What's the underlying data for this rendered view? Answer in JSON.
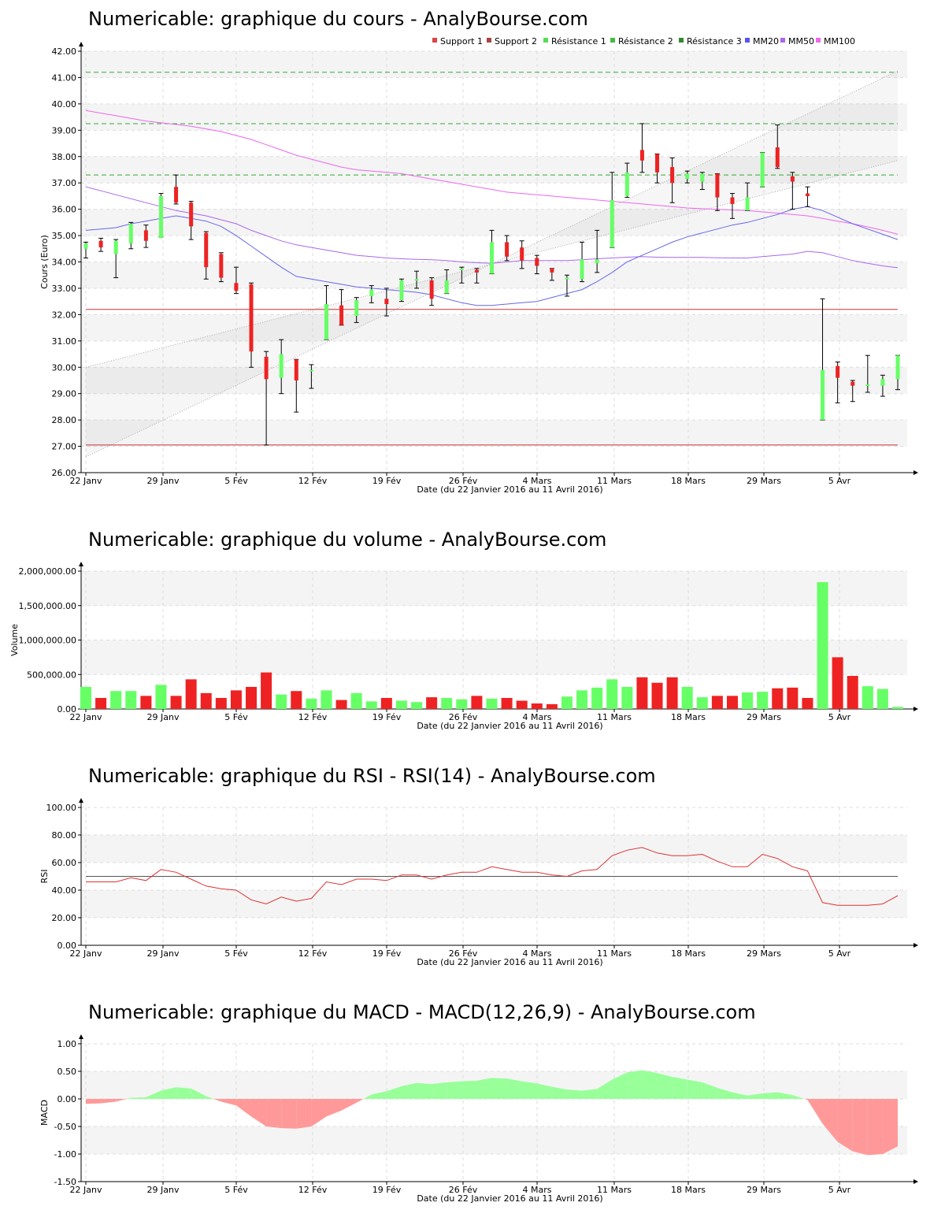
{
  "common": {
    "x_labels": [
      "22 Janv",
      "29 Janv",
      "5 Fév",
      "12 Fév",
      "19 Fév",
      "26 Fév",
      "4 Mars",
      "11 Mars",
      "18 Mars",
      "29 Mars",
      "5 Avr"
    ],
    "x_axis_label": "Date (du 22 Janvier 2016 au 11 Avril 2016)",
    "colors": {
      "up": "#66ff66",
      "down": "#ee2222",
      "mm20": "#6666ee",
      "mm50": "#aa66ee",
      "mm100": "#ee66ee",
      "support": "#cc3333",
      "resistance": "#33aa33",
      "band": "#f4f4f4",
      "grid": "#dddddd"
    }
  },
  "chart_data": [
    {
      "type": "candlestick",
      "title": "Numericable: graphique du cours - AnalyBourse.com",
      "ylabel": "Cours (Euro)",
      "ylim": [
        26,
        42
      ],
      "yticks": [
        "26.00",
        "27.00",
        "28.00",
        "29.00",
        "30.00",
        "31.00",
        "32.00",
        "33.00",
        "34.00",
        "35.00",
        "36.00",
        "37.00",
        "38.00",
        "39.00",
        "40.00",
        "41.00",
        "42.00"
      ],
      "legend": [
        "Support 1",
        "Support 2",
        "Résistance 1",
        "Résistance 2",
        "Résistance 3",
        "MM20",
        "MM50",
        "MM100"
      ],
      "legend_colors": [
        "#dd4444",
        "#aa4444",
        "#55dd55",
        "#44bb44",
        "#338833",
        "#5555ee",
        "#aa66ee",
        "#ee66ee"
      ],
      "support_levels": [
        32.2,
        27.05
      ],
      "resistance_levels": [
        37.3,
        39.25,
        41.2
      ],
      "ohlc": [
        [
          34.5,
          34.7,
          34.15,
          34.75
        ],
        [
          34.8,
          34.55,
          34.4,
          34.9
        ],
        [
          34.3,
          34.8,
          33.4,
          34.85
        ],
        [
          34.7,
          35.45,
          34.5,
          35.5
        ],
        [
          35.2,
          34.8,
          34.55,
          35.4
        ],
        [
          34.9,
          36.5,
          34.95,
          36.6
        ],
        [
          36.85,
          36.25,
          36.2,
          37.3
        ],
        [
          36.25,
          35.35,
          34.85,
          36.3
        ],
        [
          35.1,
          33.8,
          33.35,
          35.15
        ],
        [
          34.3,
          33.4,
          33.25,
          34.35
        ],
        [
          33.2,
          32.9,
          32.8,
          33.8
        ],
        [
          33.15,
          30.6,
          30.0,
          33.2
        ],
        [
          30.4,
          29.55,
          27.05,
          30.6
        ],
        [
          29.6,
          30.5,
          29.0,
          31.05
        ],
        [
          30.3,
          29.5,
          28.3,
          30.3
        ],
        [
          29.85,
          29.9,
          29.2,
          30.1
        ],
        [
          31.05,
          32.4,
          31.05,
          33.1
        ],
        [
          32.35,
          31.6,
          31.6,
          32.95
        ],
        [
          31.95,
          32.55,
          31.7,
          32.65
        ],
        [
          32.7,
          32.95,
          32.45,
          33.1
        ],
        [
          32.6,
          32.4,
          31.95,
          33.0
        ],
        [
          32.55,
          33.3,
          32.5,
          33.35
        ],
        [
          33.35,
          33.35,
          33.0,
          33.65
        ],
        [
          33.3,
          32.6,
          32.35,
          33.4
        ],
        [
          32.8,
          33.3,
          32.8,
          33.7
        ],
        [
          33.7,
          33.75,
          33.2,
          33.8
        ],
        [
          33.7,
          33.6,
          33.2,
          33.75
        ],
        [
          33.55,
          34.75,
          33.55,
          35.2
        ],
        [
          34.75,
          34.2,
          34.05,
          35.0
        ],
        [
          34.55,
          34.05,
          33.75,
          34.8
        ],
        [
          34.15,
          33.85,
          33.55,
          34.25
        ],
        [
          33.75,
          33.6,
          33.3,
          33.75
        ],
        [
          33.35,
          33.4,
          32.7,
          33.5
        ],
        [
          33.35,
          34.1,
          33.25,
          34.75
        ],
        [
          33.95,
          34.1,
          33.6,
          35.2
        ],
        [
          34.55,
          36.35,
          34.55,
          37.4
        ],
        [
          36.5,
          37.4,
          36.45,
          37.75
        ],
        [
          38.25,
          37.85,
          37.4,
          39.25
        ],
        [
          38.1,
          37.4,
          37.0,
          38.1
        ],
        [
          37.6,
          37.0,
          36.25,
          37.95
        ],
        [
          37.15,
          37.35,
          37.0,
          37.45
        ],
        [
          37.05,
          37.35,
          36.75,
          37.4
        ],
        [
          37.35,
          36.45,
          35.95,
          37.35
        ],
        [
          36.45,
          36.2,
          35.65,
          36.6
        ],
        [
          35.95,
          36.45,
          35.95,
          37.0
        ],
        [
          36.85,
          38.15,
          36.85,
          38.15
        ],
        [
          38.35,
          37.6,
          37.55,
          39.2
        ],
        [
          37.25,
          37.05,
          36.0,
          37.4
        ],
        [
          36.6,
          36.5,
          36.1,
          36.85
        ],
        [
          28.0,
          29.9,
          28.0,
          32.6
        ],
        [
          30.05,
          29.6,
          28.65,
          30.2
        ],
        [
          29.45,
          29.3,
          28.7,
          29.5
        ],
        [
          29.3,
          29.35,
          29.05,
          30.45
        ],
        [
          29.3,
          29.55,
          28.9,
          29.7
        ],
        [
          29.55,
          30.45,
          29.15,
          30.45
        ]
      ],
      "mm20": [
        35.2,
        35.25,
        35.3,
        35.45,
        35.55,
        35.65,
        35.75,
        35.65,
        35.55,
        35.35,
        35.0,
        34.6,
        34.2,
        33.8,
        33.45,
        33.35,
        33.25,
        33.15,
        33.05,
        33.0,
        32.95,
        32.9,
        32.85,
        32.75,
        32.6,
        32.45,
        32.35,
        32.35,
        32.4,
        32.45,
        32.5,
        32.65,
        32.8,
        32.95,
        33.25,
        33.6,
        34.0,
        34.25,
        34.5,
        34.75,
        34.95,
        35.1,
        35.25,
        35.4,
        35.5,
        35.65,
        35.8,
        36.0,
        36.1,
        35.95,
        35.7,
        35.45,
        35.25,
        35.05,
        34.85
      ],
      "mm50": [
        36.85,
        36.7,
        36.55,
        36.4,
        36.25,
        36.1,
        35.95,
        35.85,
        35.75,
        35.6,
        35.45,
        35.2,
        35.0,
        34.8,
        34.65,
        34.55,
        34.45,
        34.35,
        34.25,
        34.2,
        34.15,
        34.12,
        34.1,
        34.08,
        34.05,
        34.0,
        33.97,
        33.95,
        34.0,
        34.05,
        34.05,
        34.05,
        34.05,
        34.08,
        34.12,
        34.15,
        34.18,
        34.2,
        34.18,
        34.17,
        34.17,
        34.17,
        34.16,
        34.15,
        34.15,
        34.2,
        34.25,
        34.3,
        34.4,
        34.35,
        34.2,
        34.05,
        33.95,
        33.85,
        33.78
      ],
      "mm100": [
        39.75,
        39.65,
        39.55,
        39.45,
        39.35,
        39.28,
        39.22,
        39.15,
        39.05,
        38.95,
        38.8,
        38.65,
        38.45,
        38.25,
        38.05,
        37.9,
        37.75,
        37.6,
        37.5,
        37.45,
        37.4,
        37.35,
        37.25,
        37.15,
        37.05,
        36.95,
        36.85,
        36.75,
        36.65,
        36.6,
        36.55,
        36.5,
        36.45,
        36.4,
        36.35,
        36.3,
        36.25,
        36.2,
        36.15,
        36.1,
        36.05,
        36.02,
        36.0,
        35.97,
        35.95,
        35.9,
        35.85,
        35.8,
        35.75,
        35.65,
        35.55,
        35.45,
        35.33,
        35.2,
        35.05
      ]
    },
    {
      "type": "bar",
      "title": "Numericable: graphique du volume - AnalyBourse.com",
      "ylabel": "Volume",
      "ylim": [
        0,
        2000000
      ],
      "yticks": [
        "0.00",
        "500,000.00",
        "1,000,000.00",
        "1,500,000.00",
        "2,000,000.00"
      ],
      "values": [
        320000,
        160000,
        260000,
        260000,
        190000,
        350000,
        190000,
        430000,
        230000,
        160000,
        270000,
        320000,
        530000,
        210000,
        260000,
        150000,
        270000,
        130000,
        230000,
        110000,
        160000,
        120000,
        100000,
        170000,
        160000,
        140000,
        190000,
        150000,
        160000,
        120000,
        80000,
        70000,
        180000,
        270000,
        310000,
        430000,
        320000,
        460000,
        380000,
        460000,
        320000,
        170000,
        190000,
        190000,
        240000,
        250000,
        300000,
        310000,
        160000,
        1840000,
        750000,
        480000,
        330000,
        290000,
        30000
      ],
      "up": [
        1,
        0,
        1,
        1,
        0,
        1,
        0,
        0,
        0,
        0,
        0,
        0,
        0,
        1,
        0,
        1,
        1,
        0,
        1,
        1,
        0,
        1,
        1,
        0,
        1,
        1,
        0,
        1,
        0,
        0,
        0,
        0,
        1,
        1,
        1,
        1,
        1,
        0,
        0,
        0,
        1,
        1,
        0,
        0,
        1,
        1,
        0,
        0,
        0,
        1,
        0,
        0,
        1,
        1,
        1
      ]
    },
    {
      "type": "line",
      "title": "Numericable: graphique du RSI - RSI(14) - AnalyBourse.com",
      "ylabel": "RSI",
      "ylim": [
        0,
        100
      ],
      "yticks": [
        "0.00",
        "20.00",
        "40.00",
        "60.00",
        "80.00",
        "100.00"
      ],
      "reference_line": 50,
      "values": [
        46,
        46,
        46,
        49,
        47,
        55,
        53,
        48,
        43,
        41,
        40,
        33,
        30,
        35,
        32,
        34,
        46,
        44,
        48,
        48,
        47,
        51,
        51,
        48,
        51,
        53,
        53,
        57,
        55,
        53,
        53,
        51,
        50,
        54,
        55,
        65,
        69,
        71,
        67,
        65,
        65,
        66,
        61,
        57,
        57,
        66,
        63,
        57,
        54,
        31,
        29,
        29,
        29,
        30,
        36
      ]
    },
    {
      "type": "area",
      "title": "Numericable: graphique du MACD - MACD(12,26,9) - AnalyBourse.com",
      "ylabel": "MACD",
      "ylim": [
        -1.5,
        1.0
      ],
      "yticks": [
        "-1.50",
        "-1.00",
        "-0.50",
        "0.00",
        "0.50",
        "1.00"
      ],
      "values": [
        -0.09,
        -0.08,
        -0.05,
        0.02,
        0.03,
        0.15,
        0.21,
        0.19,
        0.05,
        -0.05,
        -0.12,
        -0.32,
        -0.5,
        -0.53,
        -0.54,
        -0.5,
        -0.32,
        -0.21,
        -0.07,
        0.08,
        0.14,
        0.23,
        0.29,
        0.27,
        0.3,
        0.32,
        0.33,
        0.38,
        0.37,
        0.32,
        0.28,
        0.22,
        0.17,
        0.15,
        0.18,
        0.35,
        0.48,
        0.52,
        0.47,
        0.4,
        0.35,
        0.3,
        0.2,
        0.12,
        0.06,
        0.1,
        0.12,
        0.07,
        -0.02,
        -0.45,
        -0.78,
        -0.95,
        -1.02,
        -1.0,
        -0.86
      ]
    }
  ]
}
